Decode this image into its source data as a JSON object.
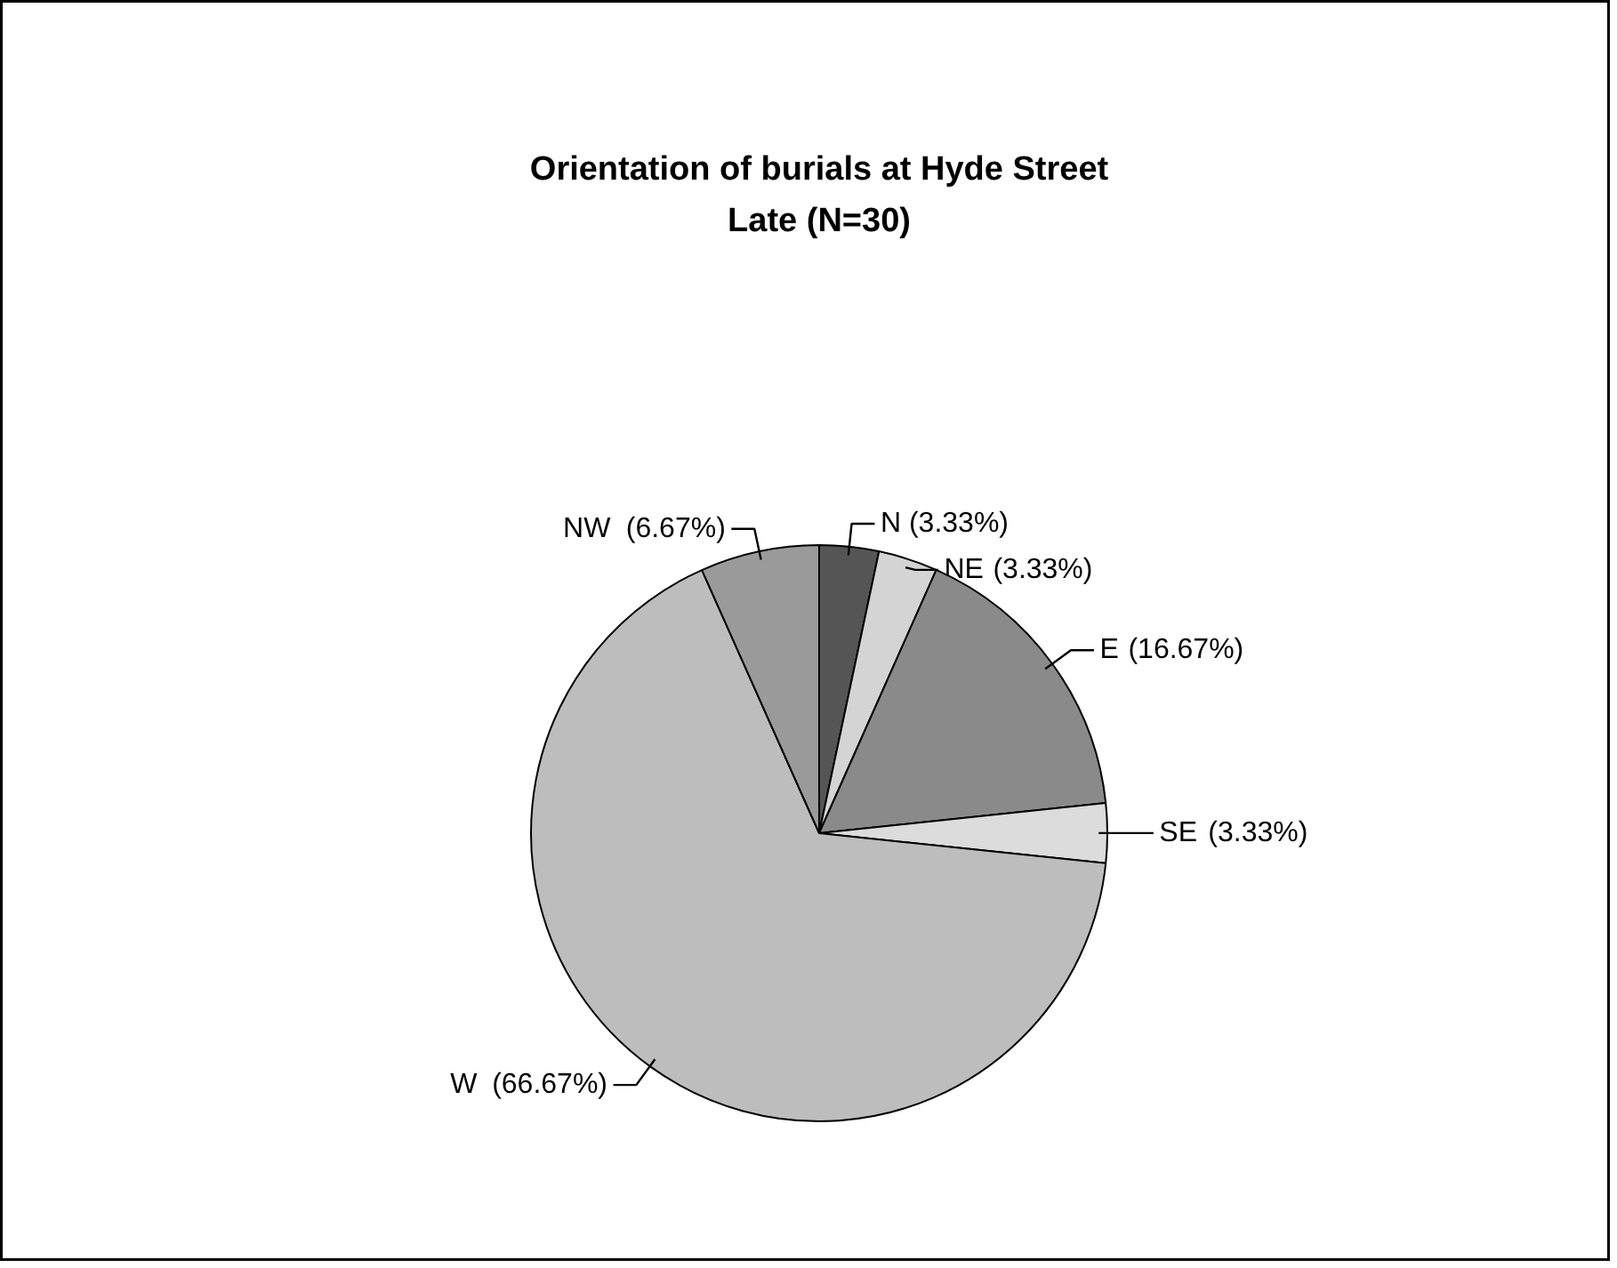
{
  "chart_data": {
    "type": "pie",
    "title": "Orientation of burials at Hyde Street",
    "subtitle": "Late (N=30)",
    "categories": [
      "N",
      "NE",
      "E",
      "SE",
      "W",
      "NW"
    ],
    "values": [
      3.33,
      3.33,
      16.67,
      3.33,
      66.67,
      6.67
    ],
    "colors": [
      "#555555",
      "#d4d4d4",
      "#8a8a8a",
      "#dcdcdc",
      "#bdbdbd",
      "#9a9a9a"
    ],
    "value_labels": [
      "(3.33%)",
      "(3.33%)",
      "(16.67%)",
      "(3.33%)",
      "(66.67%)",
      "(6.67%)"
    ],
    "legend": false
  }
}
